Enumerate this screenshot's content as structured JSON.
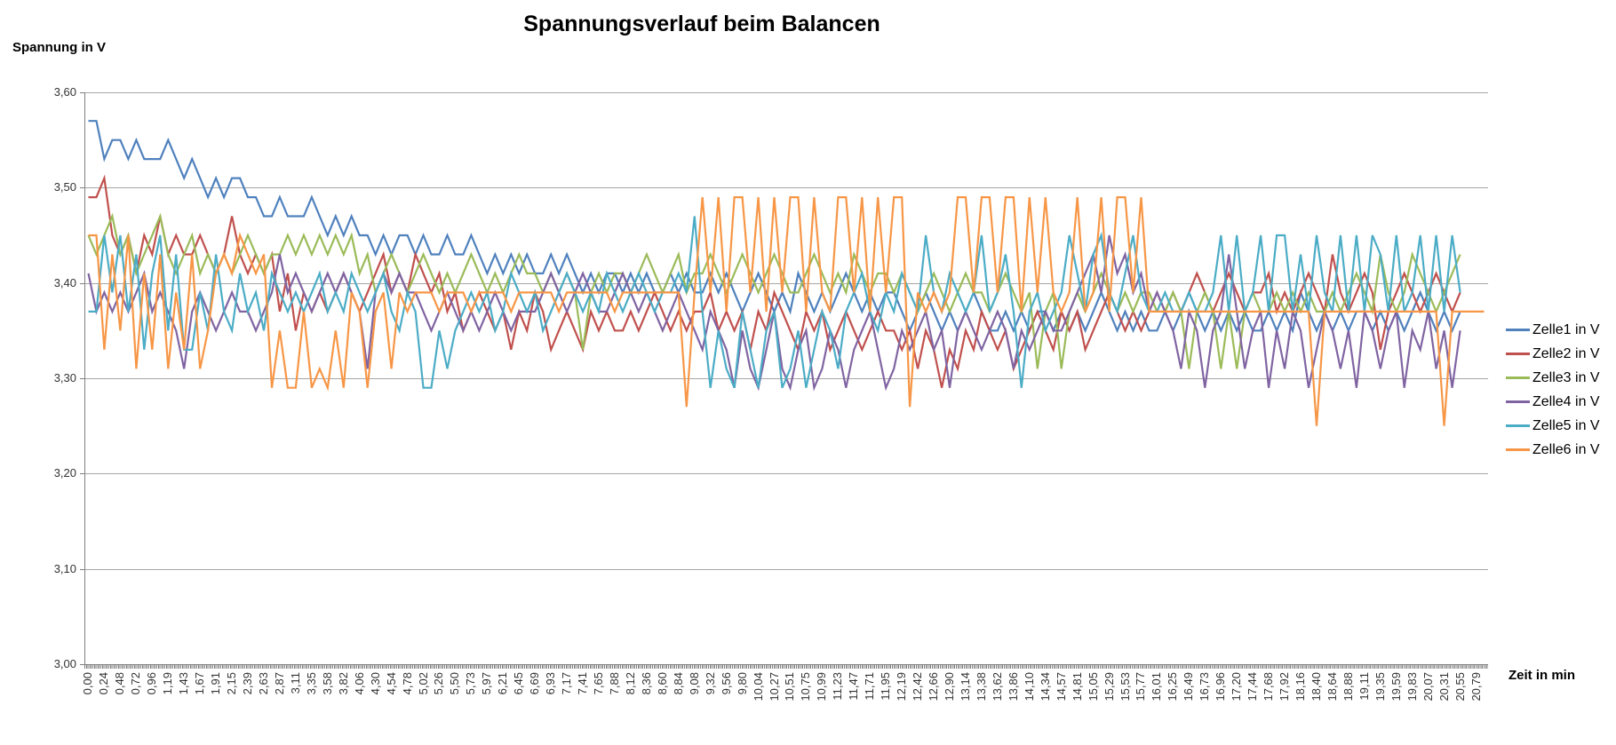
{
  "chart_data": {
    "type": "line",
    "title": "Spannungsverlauf beim Balancen",
    "ylabel": "Spannung in V",
    "xlabel": "Zeit in min",
    "ylim": [
      3.0,
      3.6
    ],
    "grid": "horizontal",
    "legend_position": "right",
    "y_tick_labels": [
      "3,60",
      "3,50",
      "3,40",
      "3,30",
      "3,20",
      "3,10",
      "3,00"
    ],
    "x_tick_labels": [
      "0,00",
      "0,24",
      "0,48",
      "0,72",
      "0,96",
      "1,19",
      "1,43",
      "1,67",
      "1,91",
      "2,15",
      "2,39",
      "2,63",
      "2,87",
      "3,11",
      "3,35",
      "3,58",
      "3,82",
      "4,06",
      "4,30",
      "4,54",
      "4,78",
      "5,02",
      "5,26",
      "5,50",
      "5,73",
      "5,97",
      "6,21",
      "6,45",
      "6,69",
      "6,93",
      "7,17",
      "7,41",
      "7,65",
      "7,88",
      "8,12",
      "8,36",
      "8,60",
      "8,84",
      "9,08",
      "9,32",
      "9,56",
      "9,80",
      "10,04",
      "10,27",
      "10,51",
      "10,75",
      "10,99",
      "11,23",
      "11,47",
      "11,71",
      "11,95",
      "12,19",
      "12,42",
      "12,66",
      "12,90",
      "13,14",
      "13,38",
      "13,62",
      "13,86",
      "14,10",
      "14,34",
      "14,57",
      "14,81",
      "15,05",
      "15,29",
      "15,53",
      "15,77",
      "16,01",
      "16,25",
      "16,49",
      "16,73",
      "16,96",
      "17,20",
      "17,44",
      "17,68",
      "17,92",
      "18,16",
      "18,40",
      "18,64",
      "18,88",
      "19,11",
      "19,35",
      "19,59",
      "19,83",
      "20,07",
      "20,31",
      "20,55",
      "20,79"
    ],
    "x_max_min": 20.79,
    "sample_interval_min": 0.118,
    "quantization_step_v": 0.02,
    "colors": {
      "grid": "#a6a6a6",
      "axis": "#808080",
      "tick_text": "#333333",
      "title_text": "#000000"
    },
    "series": [
      {
        "name": "Zelle1 in V",
        "color": "#4F81BD",
        "values": [
          3.57,
          3.57,
          3.53,
          3.55,
          3.55,
          3.53,
          3.55,
          3.53,
          3.53,
          3.53,
          3.55,
          3.53,
          3.51,
          3.53,
          3.51,
          3.49,
          3.51,
          3.49,
          3.51,
          3.51,
          3.49,
          3.49,
          3.47,
          3.47,
          3.49,
          3.47,
          3.47,
          3.47,
          3.49,
          3.47,
          3.45,
          3.47,
          3.45,
          3.47,
          3.45,
          3.45,
          3.43,
          3.45,
          3.43,
          3.45,
          3.45,
          3.43,
          3.45,
          3.43,
          3.43,
          3.45,
          3.43,
          3.43,
          3.45,
          3.43,
          3.41,
          3.43,
          3.41,
          3.43,
          3.41,
          3.43,
          3.41,
          3.41,
          3.43,
          3.41,
          3.43,
          3.41,
          3.39,
          3.41,
          3.39,
          3.41,
          3.41,
          3.39,
          3.41,
          3.39,
          3.41,
          3.39,
          3.39,
          3.41,
          3.39,
          3.41,
          3.39,
          3.39,
          3.41,
          3.39,
          3.41,
          3.39,
          3.37,
          3.39,
          3.41,
          3.39,
          3.37,
          3.39,
          3.37,
          3.41,
          3.39,
          3.37,
          3.39,
          3.37,
          3.39,
          3.41,
          3.39,
          3.37,
          3.39,
          3.37,
          3.39,
          3.39,
          3.37,
          3.35,
          3.37,
          3.39,
          3.37,
          3.35,
          3.37,
          3.35,
          3.37,
          3.39,
          3.37,
          3.35,
          3.35,
          3.37,
          3.35,
          3.37,
          3.35,
          3.37,
          3.37,
          3.35,
          3.37,
          3.35,
          3.37,
          3.35,
          3.37,
          3.39,
          3.37,
          3.35,
          3.37,
          3.35,
          3.37,
          3.35,
          3.35,
          3.37,
          3.35,
          3.37,
          3.39,
          3.37,
          3.35,
          3.37,
          3.35,
          3.37,
          3.35,
          3.37,
          3.35,
          3.35,
          3.37,
          3.35,
          3.37,
          3.35,
          3.39,
          3.37,
          3.35,
          3.37,
          3.35,
          3.37,
          3.35,
          3.37,
          3.37,
          3.35,
          3.37,
          3.35,
          3.37,
          3.35,
          3.37,
          3.39,
          3.37,
          3.35,
          3.37,
          3.35,
          3.37
        ]
      },
      {
        "name": "Zelle2 in V",
        "color": "#C0504D",
        "values": [
          3.49,
          3.49,
          3.51,
          3.45,
          3.43,
          3.45,
          3.41,
          3.45,
          3.43,
          3.47,
          3.43,
          3.45,
          3.43,
          3.43,
          3.45,
          3.43,
          3.41,
          3.43,
          3.47,
          3.43,
          3.41,
          3.43,
          3.41,
          3.43,
          3.37,
          3.41,
          3.35,
          3.39,
          3.37,
          3.39,
          3.37,
          3.39,
          3.41,
          3.39,
          3.37,
          3.39,
          3.41,
          3.43,
          3.39,
          3.41,
          3.39,
          3.43,
          3.41,
          3.39,
          3.41,
          3.37,
          3.39,
          3.35,
          3.37,
          3.39,
          3.37,
          3.35,
          3.37,
          3.33,
          3.37,
          3.35,
          3.39,
          3.37,
          3.33,
          3.35,
          3.37,
          3.35,
          3.33,
          3.37,
          3.35,
          3.37,
          3.35,
          3.35,
          3.37,
          3.35,
          3.37,
          3.39,
          3.37,
          3.35,
          3.37,
          3.35,
          3.37,
          3.37,
          3.39,
          3.35,
          3.37,
          3.35,
          3.37,
          3.33,
          3.37,
          3.35,
          3.39,
          3.37,
          3.35,
          3.33,
          3.37,
          3.35,
          3.37,
          3.33,
          3.35,
          3.37,
          3.35,
          3.33,
          3.35,
          3.37,
          3.35,
          3.35,
          3.33,
          3.35,
          3.31,
          3.35,
          3.33,
          3.29,
          3.33,
          3.31,
          3.35,
          3.33,
          3.37,
          3.35,
          3.33,
          3.35,
          3.31,
          3.33,
          3.35,
          3.37,
          3.35,
          3.33,
          3.37,
          3.35,
          3.37,
          3.33,
          3.35,
          3.37,
          3.39,
          3.37,
          3.35,
          3.37,
          3.35,
          3.37,
          3.39,
          3.37,
          3.39,
          3.37,
          3.39,
          3.41,
          3.39,
          3.37,
          3.39,
          3.41,
          3.39,
          3.37,
          3.39,
          3.39,
          3.41,
          3.37,
          3.39,
          3.37,
          3.39,
          3.41,
          3.39,
          3.37,
          3.43,
          3.39,
          3.37,
          3.39,
          3.41,
          3.39,
          3.33,
          3.37,
          3.39,
          3.41,
          3.39,
          3.37,
          3.39,
          3.41,
          3.39,
          3.37,
          3.39
        ]
      },
      {
        "name": "Zelle3 in V",
        "color": "#9BBB59",
        "values": [
          3.45,
          3.43,
          3.45,
          3.47,
          3.43,
          3.45,
          3.41,
          3.43,
          3.45,
          3.47,
          3.43,
          3.41,
          3.43,
          3.45,
          3.41,
          3.43,
          3.41,
          3.43,
          3.41,
          3.43,
          3.45,
          3.43,
          3.41,
          3.43,
          3.43,
          3.45,
          3.43,
          3.45,
          3.43,
          3.45,
          3.43,
          3.45,
          3.43,
          3.45,
          3.41,
          3.43,
          3.39,
          3.41,
          3.43,
          3.41,
          3.39,
          3.41,
          3.43,
          3.41,
          3.39,
          3.41,
          3.39,
          3.41,
          3.43,
          3.41,
          3.39,
          3.41,
          3.39,
          3.41,
          3.43,
          3.41,
          3.41,
          3.39,
          3.41,
          3.39,
          3.41,
          3.39,
          3.33,
          3.39,
          3.41,
          3.39,
          3.41,
          3.41,
          3.39,
          3.41,
          3.43,
          3.41,
          3.39,
          3.41,
          3.43,
          3.39,
          3.41,
          3.41,
          3.43,
          3.41,
          3.39,
          3.41,
          3.43,
          3.41,
          3.39,
          3.41,
          3.43,
          3.41,
          3.39,
          3.39,
          3.41,
          3.43,
          3.41,
          3.39,
          3.41,
          3.39,
          3.43,
          3.41,
          3.39,
          3.41,
          3.41,
          3.39,
          3.41,
          3.39,
          3.37,
          3.39,
          3.41,
          3.39,
          3.37,
          3.39,
          3.41,
          3.39,
          3.39,
          3.37,
          3.39,
          3.41,
          3.39,
          3.37,
          3.39,
          3.31,
          3.37,
          3.39,
          3.31,
          3.37,
          3.39,
          3.37,
          3.39,
          3.41,
          3.39,
          3.37,
          3.39,
          3.37,
          3.39,
          3.39,
          3.37,
          3.37,
          3.39,
          3.37,
          3.31,
          3.37,
          3.39,
          3.37,
          3.31,
          3.37,
          3.31,
          3.37,
          3.39,
          3.37,
          3.37,
          3.39,
          3.37,
          3.39,
          3.37,
          3.39,
          3.37,
          3.37,
          3.39,
          3.37,
          3.39,
          3.41,
          3.39,
          3.37,
          3.43,
          3.39,
          3.37,
          3.39,
          3.43,
          3.41,
          3.39,
          3.37,
          3.39,
          3.41,
          3.43
        ]
      },
      {
        "name": "Zelle4 in V",
        "color": "#8064A2",
        "values": [
          3.41,
          3.37,
          3.39,
          3.37,
          3.39,
          3.37,
          3.39,
          3.41,
          3.37,
          3.39,
          3.37,
          3.35,
          3.31,
          3.37,
          3.39,
          3.37,
          3.35,
          3.37,
          3.39,
          3.37,
          3.37,
          3.35,
          3.37,
          3.39,
          3.43,
          3.39,
          3.41,
          3.39,
          3.37,
          3.39,
          3.41,
          3.39,
          3.41,
          3.39,
          3.37,
          3.31,
          3.39,
          3.41,
          3.39,
          3.41,
          3.39,
          3.39,
          3.37,
          3.35,
          3.37,
          3.39,
          3.37,
          3.35,
          3.37,
          3.35,
          3.37,
          3.39,
          3.37,
          3.35,
          3.37,
          3.37,
          3.37,
          3.39,
          3.41,
          3.39,
          3.37,
          3.39,
          3.41,
          3.39,
          3.37,
          3.37,
          3.39,
          3.41,
          3.39,
          3.37,
          3.39,
          3.37,
          3.35,
          3.37,
          3.39,
          3.37,
          3.35,
          3.33,
          3.37,
          3.35,
          3.33,
          3.29,
          3.35,
          3.31,
          3.29,
          3.33,
          3.37,
          3.31,
          3.29,
          3.33,
          3.35,
          3.29,
          3.31,
          3.35,
          3.33,
          3.29,
          3.33,
          3.35,
          3.37,
          3.33,
          3.29,
          3.31,
          3.35,
          3.33,
          3.35,
          3.37,
          3.33,
          3.35,
          3.29,
          3.35,
          3.37,
          3.35,
          3.33,
          3.35,
          3.37,
          3.35,
          3.31,
          3.35,
          3.33,
          3.35,
          3.37,
          3.35,
          3.35,
          3.37,
          3.39,
          3.41,
          3.43,
          3.39,
          3.45,
          3.41,
          3.43,
          3.39,
          3.41,
          3.37,
          3.39,
          3.37,
          3.35,
          3.31,
          3.37,
          3.35,
          3.29,
          3.35,
          3.37,
          3.43,
          3.37,
          3.31,
          3.35,
          3.37,
          3.29,
          3.35,
          3.31,
          3.37,
          3.35,
          3.29,
          3.33,
          3.37,
          3.35,
          3.31,
          3.35,
          3.29,
          3.37,
          3.35,
          3.31,
          3.35,
          3.37,
          3.29,
          3.35,
          3.33,
          3.37,
          3.31,
          3.35,
          3.29,
          3.35
        ]
      },
      {
        "name": "Zelle5 in V",
        "color": "#4BACC6",
        "values": [
          3.37,
          3.37,
          3.45,
          3.39,
          3.45,
          3.37,
          3.43,
          3.33,
          3.41,
          3.45,
          3.35,
          3.43,
          3.33,
          3.33,
          3.39,
          3.35,
          3.43,
          3.37,
          3.35,
          3.41,
          3.37,
          3.39,
          3.35,
          3.41,
          3.39,
          3.37,
          3.39,
          3.37,
          3.39,
          3.41,
          3.37,
          3.39,
          3.37,
          3.41,
          3.39,
          3.37,
          3.39,
          3.41,
          3.37,
          3.35,
          3.39,
          3.37,
          3.29,
          3.29,
          3.35,
          3.31,
          3.35,
          3.37,
          3.39,
          3.37,
          3.39,
          3.35,
          3.37,
          3.41,
          3.39,
          3.37,
          3.39,
          3.35,
          3.37,
          3.39,
          3.41,
          3.39,
          3.37,
          3.39,
          3.37,
          3.41,
          3.39,
          3.37,
          3.39,
          3.41,
          3.39,
          3.37,
          3.39,
          3.39,
          3.41,
          3.39,
          3.47,
          3.37,
          3.29,
          3.35,
          3.31,
          3.29,
          3.37,
          3.33,
          3.29,
          3.35,
          3.37,
          3.29,
          3.31,
          3.35,
          3.29,
          3.33,
          3.37,
          3.35,
          3.31,
          3.37,
          3.39,
          3.41,
          3.37,
          3.35,
          3.39,
          3.37,
          3.41,
          3.39,
          3.37,
          3.45,
          3.39,
          3.37,
          3.41,
          3.39,
          3.37,
          3.39,
          3.45,
          3.37,
          3.39,
          3.43,
          3.37,
          3.29,
          3.37,
          3.39,
          3.35,
          3.37,
          3.39,
          3.45,
          3.41,
          3.37,
          3.43,
          3.45,
          3.39,
          3.37,
          3.41,
          3.45,
          3.39,
          3.37,
          3.37,
          3.39,
          3.37,
          3.37,
          3.39,
          3.37,
          3.37,
          3.39,
          3.45,
          3.37,
          3.45,
          3.37,
          3.39,
          3.45,
          3.37,
          3.45,
          3.45,
          3.37,
          3.43,
          3.37,
          3.45,
          3.39,
          3.37,
          3.45,
          3.37,
          3.45,
          3.37,
          3.45,
          3.43,
          3.37,
          3.45,
          3.37,
          3.39,
          3.45,
          3.37,
          3.45,
          3.37,
          3.45,
          3.39
        ]
      },
      {
        "name": "Zelle6 in V",
        "color": "#F79646",
        "values": [
          3.45,
          3.45,
          3.33,
          3.43,
          3.35,
          3.45,
          3.31,
          3.41,
          3.33,
          3.43,
          3.31,
          3.39,
          3.33,
          3.43,
          3.31,
          3.35,
          3.41,
          3.43,
          3.41,
          3.45,
          3.43,
          3.41,
          3.43,
          3.29,
          3.35,
          3.29,
          3.29,
          3.37,
          3.29,
          3.31,
          3.29,
          3.35,
          3.29,
          3.39,
          3.37,
          3.29,
          3.37,
          3.39,
          3.31,
          3.39,
          3.37,
          3.39,
          3.39,
          3.39,
          3.37,
          3.39,
          3.39,
          3.39,
          3.37,
          3.39,
          3.39,
          3.39,
          3.39,
          3.37,
          3.39,
          3.39,
          3.39,
          3.39,
          3.39,
          3.37,
          3.39,
          3.39,
          3.39,
          3.39,
          3.39,
          3.39,
          3.37,
          3.39,
          3.39,
          3.39,
          3.39,
          3.39,
          3.39,
          3.39,
          3.39,
          3.27,
          3.39,
          3.49,
          3.39,
          3.49,
          3.37,
          3.49,
          3.49,
          3.39,
          3.49,
          3.37,
          3.49,
          3.39,
          3.49,
          3.49,
          3.37,
          3.49,
          3.39,
          3.37,
          3.49,
          3.49,
          3.39,
          3.49,
          3.37,
          3.49,
          3.39,
          3.49,
          3.49,
          3.27,
          3.39,
          3.37,
          3.39,
          3.37,
          3.39,
          3.49,
          3.49,
          3.39,
          3.49,
          3.49,
          3.39,
          3.49,
          3.49,
          3.37,
          3.49,
          3.39,
          3.49,
          3.39,
          3.37,
          3.39,
          3.49,
          3.37,
          3.39,
          3.49,
          3.37,
          3.49,
          3.49,
          3.39,
          3.49,
          3.37,
          3.37,
          3.37,
          3.37,
          3.37,
          3.37,
          3.37,
          3.37,
          3.37,
          3.37,
          3.37,
          3.37,
          3.37,
          3.37,
          3.37,
          3.37,
          3.37,
          3.37,
          3.37,
          3.37,
          3.37,
          3.25,
          3.37,
          3.37,
          3.37,
          3.37,
          3.37,
          3.37,
          3.37,
          3.37,
          3.37,
          3.37,
          3.37,
          3.37,
          3.37,
          3.37,
          3.37,
          3.25,
          3.37,
          3.37,
          3.37,
          3.37,
          3.37
        ]
      }
    ]
  }
}
